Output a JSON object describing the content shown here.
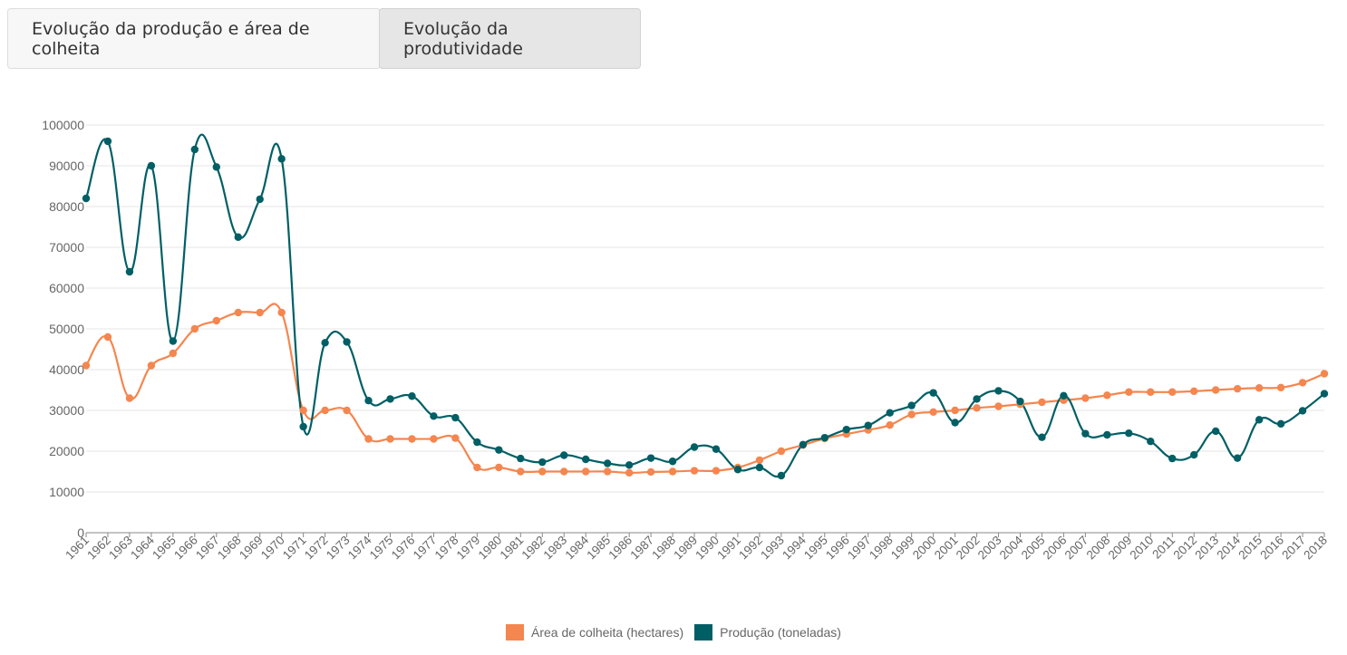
{
  "tabs": [
    {
      "label": "Evolução da produção e área de colheita"
    },
    {
      "label": "Evolução da produtividade"
    }
  ],
  "colors": {
    "area": "#F4864F",
    "producao": "#005F65",
    "grid": "#e6e6e6",
    "axis": "#888888"
  },
  "chart_data": {
    "type": "line",
    "x": [
      "1961",
      "1962",
      "1963",
      "1964",
      "1965",
      "1966",
      "1967",
      "1968",
      "1969",
      "1970",
      "1971",
      "1972",
      "1973",
      "1974",
      "1975",
      "1976",
      "1977",
      "1978",
      "1979",
      "1980",
      "1981",
      "1982",
      "1983",
      "1984",
      "1985",
      "1986",
      "1987",
      "1988",
      "1989",
      "1990",
      "1991",
      "1992",
      "1993",
      "1994",
      "1995",
      "1996",
      "1997",
      "1998",
      "1999",
      "2000",
      "2001",
      "2002",
      "2003",
      "2004",
      "2005",
      "2006",
      "2007",
      "2008",
      "2009",
      "2010",
      "2011",
      "2012",
      "2013",
      "2014",
      "2015",
      "2016",
      "2017",
      "2018"
    ],
    "yticks": [
      "0",
      "10000",
      "20000",
      "30000",
      "40000",
      "50000",
      "60000",
      "70000",
      "80000",
      "90000",
      "100000"
    ],
    "ylim": [
      0,
      100000
    ],
    "grid": true,
    "legend_position": "bottom",
    "series": [
      {
        "name": "Área de colheita (hectares)",
        "color": "#F4864F",
        "values": [
          41000,
          48000,
          33000,
          41000,
          44000,
          50000,
          52000,
          54000,
          54000,
          54000,
          30000,
          30000,
          30000,
          23000,
          23000,
          23000,
          23000,
          23200,
          16000,
          16000,
          15000,
          15000,
          15000,
          15000,
          15000,
          14700,
          14900,
          15000,
          15200,
          15200,
          16000,
          17800,
          20000,
          21500,
          23100,
          24200,
          25200,
          26400,
          29000,
          29600,
          30000,
          30600,
          31000,
          31500,
          32000,
          32500,
          33000,
          33700,
          34500,
          34500,
          34500,
          34700,
          35000,
          35300,
          35500,
          35600,
          36800,
          39000
        ]
      },
      {
        "name": "Produção (toneladas)",
        "color": "#005F65",
        "values": [
          82000,
          96000,
          64000,
          90000,
          47000,
          94000,
          89700,
          72500,
          81800,
          91700,
          26000,
          46600,
          46800,
          32400,
          32800,
          33500,
          28600,
          28200,
          22200,
          20300,
          18200,
          17300,
          19000,
          18000,
          17000,
          16600,
          18300,
          17500,
          21000,
          20500,
          15500,
          16000,
          14000,
          21600,
          23300,
          25300,
          26300,
          29400,
          31200,
          34300,
          27000,
          32800,
          34800,
          32200,
          23400,
          33600,
          24300,
          24000,
          24400,
          22400,
          18200,
          19100,
          24900,
          18300,
          27700,
          26700,
          29900,
          34100
        ]
      }
    ]
  }
}
